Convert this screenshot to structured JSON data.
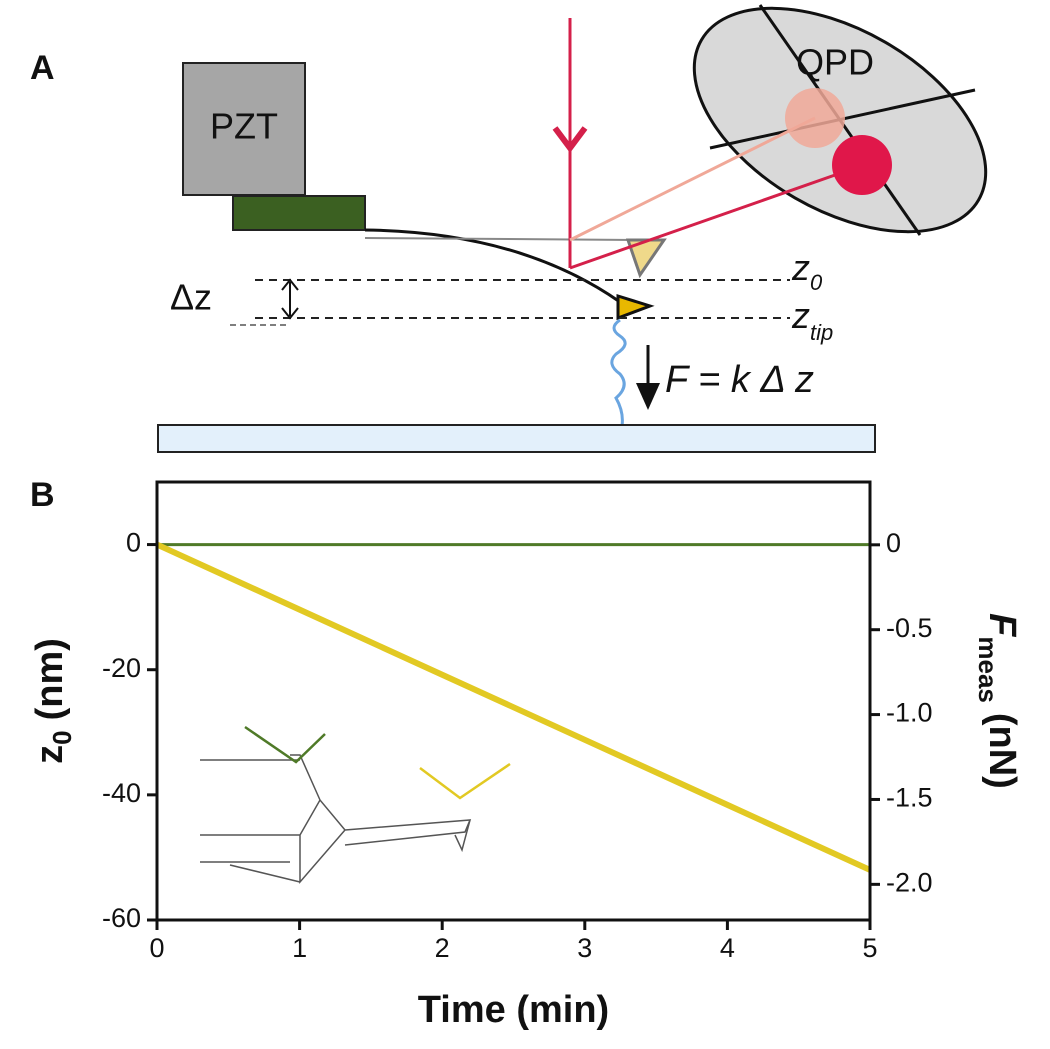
{
  "diagram": {
    "panel_a": "A",
    "pzt": "PZT",
    "qpd": "QPD",
    "delta_z": "Δz",
    "z0": {
      "main": "z",
      "sub": "0"
    },
    "ztip": {
      "main": "z",
      "sub": "tip"
    },
    "force": "F  = k Δ z"
  },
  "chart_data": {
    "type": "line",
    "panel": "B",
    "xlabel": "Time (min)",
    "ylabel": {
      "main": "z",
      "sub": "0",
      "rest": "(nm)"
    },
    "y2label": {
      "main": "F",
      "sub": "meas",
      "rest": "(nN)"
    },
    "x": [
      0,
      1,
      2,
      3,
      4,
      5
    ],
    "series": [
      {
        "color": "#4f7a28",
        "values": [
          0,
          0,
          0,
          0,
          0,
          0
        ]
      },
      {
        "color": "#e2c923",
        "values": [
          0,
          -10.4,
          -20.8,
          -31.2,
          -41.6,
          -52
        ]
      }
    ],
    "xlim": [
      0,
      5
    ],
    "xticks": [
      0,
      1,
      2,
      3,
      4,
      5
    ],
    "ylim": [
      -60,
      10
    ],
    "yticks": [
      -60,
      -40,
      -20,
      0
    ],
    "y2lim": [
      -2.21,
      0.37
    ],
    "y2ticks": [
      0,
      -0.5,
      {
        "value": -1,
        "label": "-1.0"
      },
      -1.5,
      {
        "value": -2,
        "label": "-2.0"
      }
    ]
  }
}
